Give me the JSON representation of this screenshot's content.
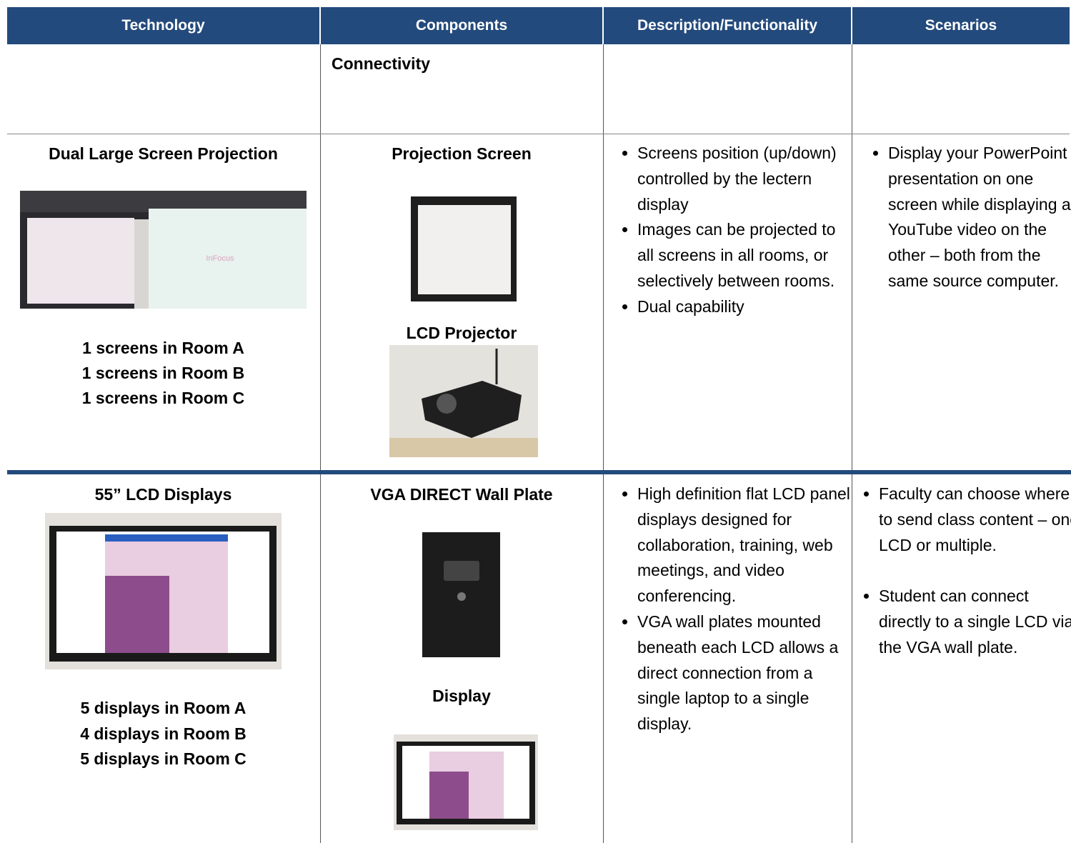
{
  "table": {
    "headers": [
      "Technology",
      "Components",
      "Description/Functionality",
      "Scenarios"
    ],
    "rows": [
      {
        "components": [
          "Connectivity"
        ]
      },
      {
        "technology": {
          "title": "Dual Large Screen Projection",
          "notes": [
            "1 screens in Room A",
            "1 screens in Room B",
            "1 screens in Room C"
          ]
        },
        "components": [
          "Projection Screen",
          "LCD Projector"
        ],
        "description": [
          "Screens position (up/down) controlled by the lectern display",
          "Images can be projected to all screens in all rooms, or selectively between rooms.",
          "Dual capability"
        ],
        "scenarios": [
          "Display your PowerPoint presentation on one screen while displaying a YouTube video on the other – both from the same source computer."
        ]
      },
      {
        "technology": {
          "title": "55” LCD Displays",
          "notes": [
            "5 displays in Room A",
            "4 displays in Room B",
            "5 displays in Room C"
          ]
        },
        "components": [
          "VGA DIRECT Wall Plate",
          "Display"
        ],
        "description": [
          "High definition flat LCD panel displays designed for collaboration, training, web meetings, and video conferencing.",
          "VGA wall plates mounted beneath each LCD allows a direct connection from a single laptop to a single display."
        ],
        "scenarios": [
          "Faculty can choose where to send class content – one LCD or multiple.",
          "Student can connect directly to a single LCD via the VGA wall plate."
        ]
      }
    ]
  }
}
